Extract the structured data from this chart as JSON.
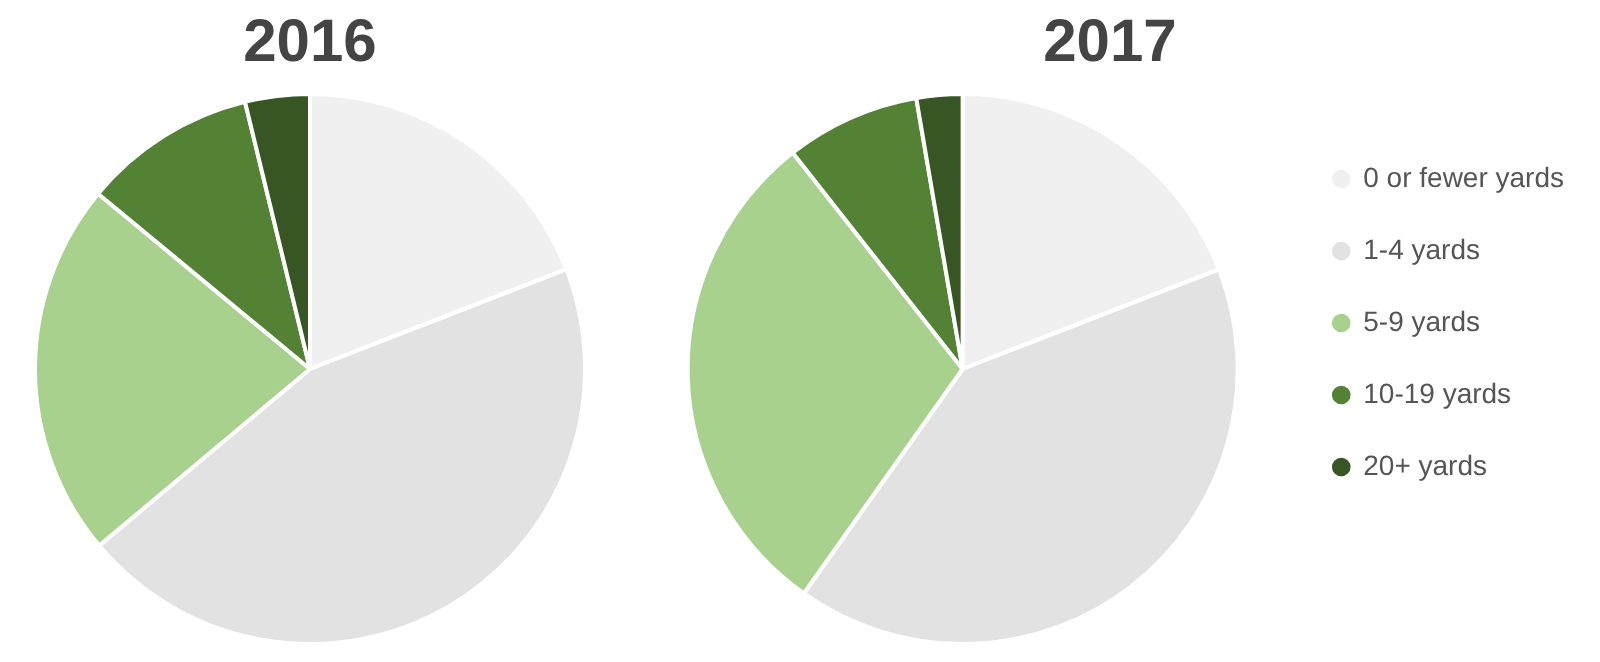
{
  "chart_data": [
    {
      "type": "pie",
      "title": "2016",
      "categories": [
        null,
        null,
        null,
        null,
        null
      ],
      "values": [
        19.1,
        44.8,
        22.1,
        10.2,
        3.8
      ],
      "colors": [
        "#f0f0f0",
        "#e3e2e3",
        "#a9d18e",
        "#548235",
        "#375623"
      ],
      "legend": false
    },
    {
      "type": "pie",
      "title": "2017",
      "categories": [
        "0 or fewer yards",
        "1-4 yards",
        "5-9 yards",
        "10-19 yards",
        "20+ yards"
      ],
      "values": [
        19.1,
        40.7,
        29.6,
        7.9,
        2.7
      ],
      "colors": [
        "#f0f0f0",
        "#e3e2e3",
        "#a9d18e",
        "#548235",
        "#375623"
      ],
      "legend": "right"
    }
  ]
}
